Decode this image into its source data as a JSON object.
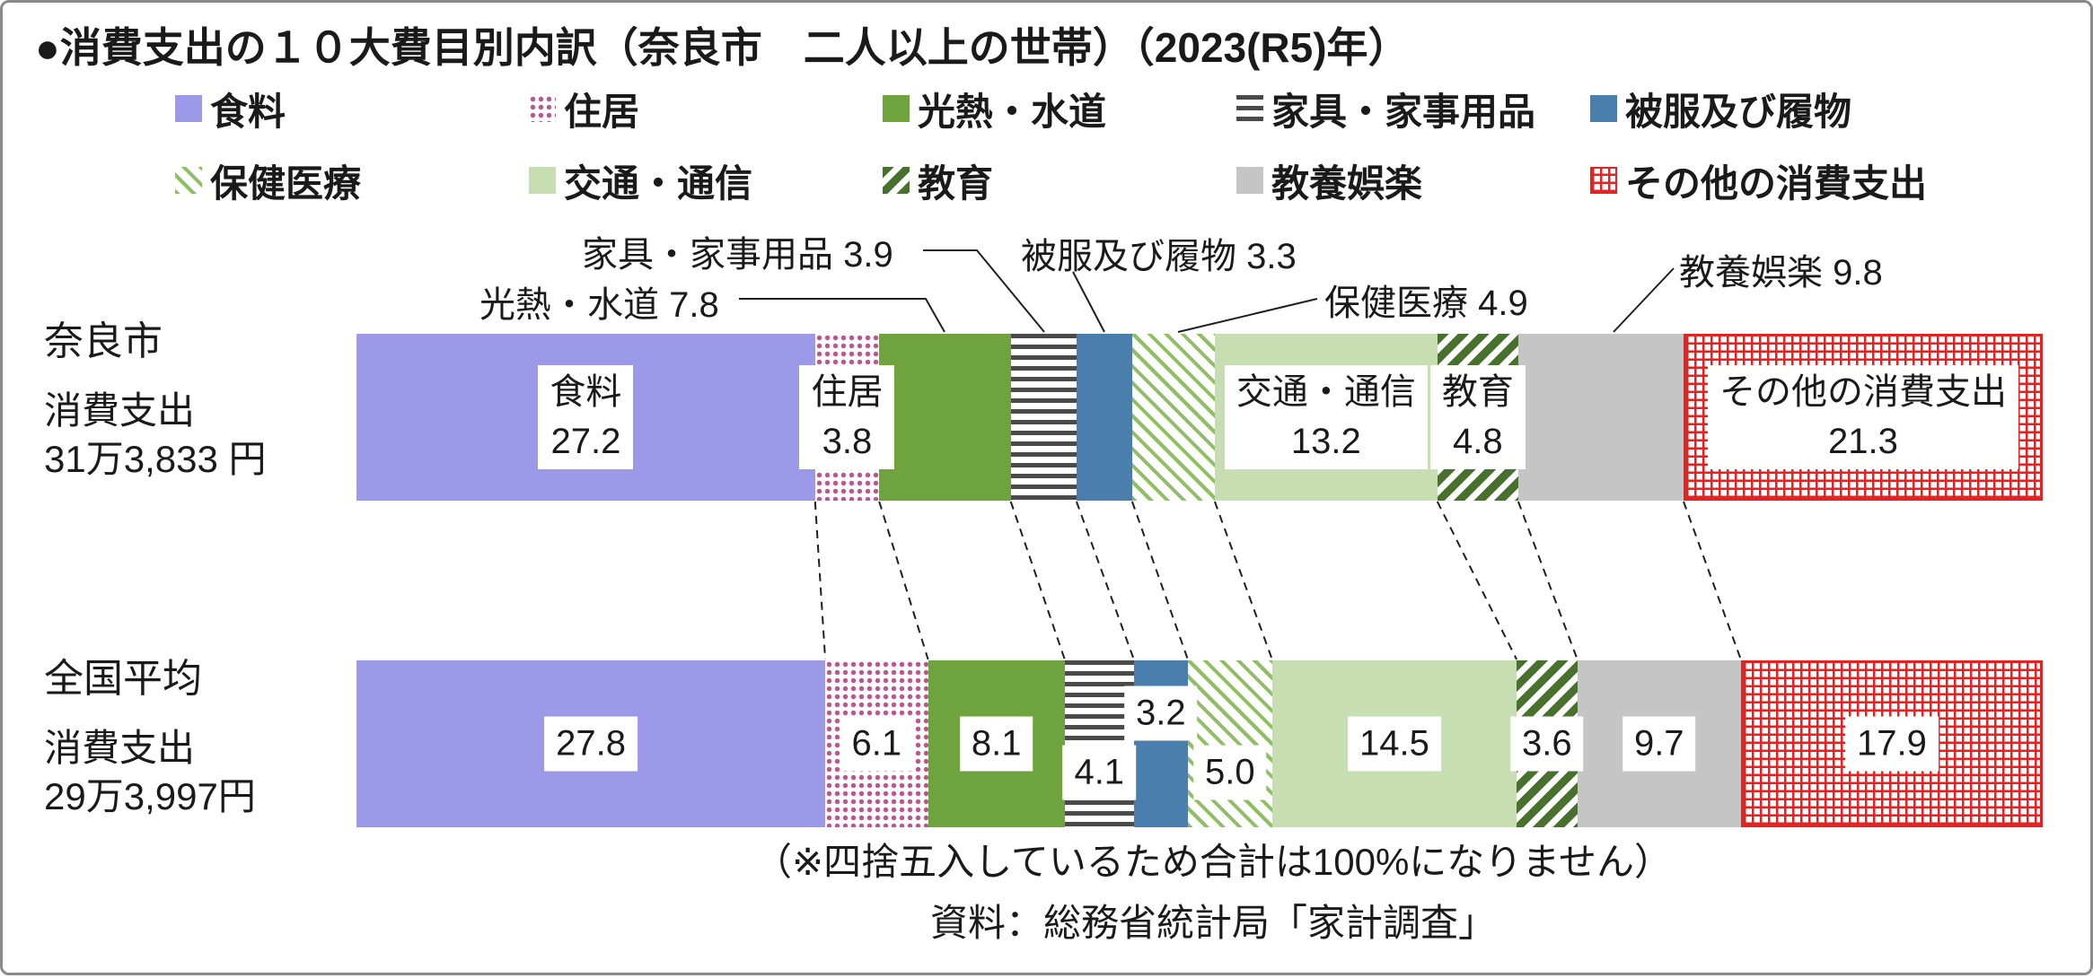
{
  "title": "●消費支出の１０大費目別内訳（奈良市　二人以上の世帯）（2023(R5)年）",
  "chart_data": {
    "type": "bar",
    "subtype": "horizontal-stacked-percent",
    "unit": "%",
    "x_range": [
      0,
      100
    ],
    "legend_position": "top",
    "categories": [
      "食料",
      "住居",
      "光熱・水道",
      "家具・家事用品",
      "被服及び履物",
      "保健医療",
      "交通・通信",
      "教育",
      "教養娯楽",
      "その他の消費支出"
    ],
    "series": [
      {
        "name": "奈良市",
        "side_label": [
          "奈良市",
          "消費支出",
          "31万3,833 円"
        ],
        "values": [
          27.2,
          3.8,
          7.8,
          3.9,
          3.3,
          4.9,
          13.2,
          4.8,
          9.8,
          21.3
        ],
        "labels": [
          {
            "seg": 0,
            "lines": [
              "食料",
              "27.2"
            ]
          },
          {
            "seg": 1,
            "lines": [
              "住居",
              "3.8"
            ]
          },
          {
            "seg": 6,
            "lines": [
              "交通・通信",
              "13.2"
            ]
          },
          {
            "seg": 7,
            "lines": [
              "教育",
              "4.8"
            ]
          },
          {
            "seg": 9,
            "lines": [
              "その他の消費支出",
              "21.3"
            ]
          }
        ]
      },
      {
        "name": "全国平均",
        "side_label": [
          "全国平均",
          "消費支出",
          "29万3,997円"
        ],
        "values": [
          27.8,
          6.1,
          8.1,
          4.1,
          3.2,
          5.0,
          14.5,
          3.6,
          9.7,
          17.9
        ],
        "labels": [
          {
            "seg": 0,
            "lines": [
              "27.8"
            ]
          },
          {
            "seg": 1,
            "lines": [
              "6.1"
            ]
          },
          {
            "seg": 2,
            "lines": [
              "8.1"
            ]
          },
          {
            "seg": 3,
            "lines": [
              "4.1"
            ],
            "dy": 32
          },
          {
            "seg": 4,
            "lines": [
              "3.2"
            ],
            "dy": -34
          },
          {
            "seg": 5,
            "lines": [
              "5.0"
            ],
            "dy": 32
          },
          {
            "seg": 6,
            "lines": [
              "14.5"
            ]
          },
          {
            "seg": 7,
            "lines": [
              "3.6"
            ]
          },
          {
            "seg": 8,
            "lines": [
              "9.7"
            ]
          },
          {
            "seg": 9,
            "lines": [
              "17.9"
            ]
          }
        ]
      }
    ],
    "annotations": [
      {
        "target": "家具・家事用品",
        "text": "家具・家事用品 3.9"
      },
      {
        "target": "光熱・水道",
        "text": "光熱・水道 7.8"
      },
      {
        "target": "被服及び履物",
        "text": "被服及び履物 3.3"
      },
      {
        "target": "保健医療",
        "text": "保健医療 4.9"
      },
      {
        "target": "教養娯楽",
        "text": "教養娯楽 9.8"
      }
    ],
    "colors": {
      "食料": "#9B99E8",
      "住居": "#BC5590",
      "光熱・水道": "#6FA33D",
      "家具・家事用品": "#4A4A4A",
      "被服及び履物": "#4A7EAC",
      "保健医療": "#8FBF63",
      "交通・通信": "#C7DEB2",
      "教育": "#47712D",
      "教養娯楽": "#C5C5C5",
      "その他の消費支出": "#E32222"
    }
  },
  "footer": {
    "note": "（※四捨五入しているため合計は100%になりません）",
    "source": "資料：総務省統計局「家計調査」"
  }
}
